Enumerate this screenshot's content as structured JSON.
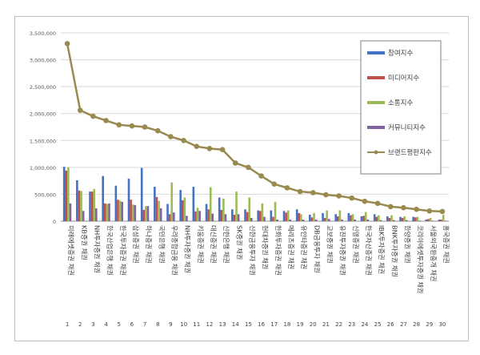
{
  "chart_data": {
    "type": "bar",
    "categories": [
      "미래에셋증권 채권",
      "KB증권 채권",
      "NH투자증권 채권",
      "한국산업은행 채권",
      "한국투자증권 채권",
      "삼성증권 채권",
      "하나증권 채권",
      "국민은행 채권",
      "우리종합금융 채권",
      "NH투자증권 채권",
      "키움증권 채권",
      "대신증권 채권",
      "신한은행 채권",
      "SK증권 채권",
      "신한금융투자 채권",
      "현대차증권 채권",
      "한화투자증권 채권",
      "메리츠증권 채권",
      "유안타증권 채권",
      "DB금융투자 채권",
      "교보증권 채권",
      "유진투자증권 채권",
      "신영증권 채권",
      "한국자산증권 채권",
      "IBK투자증권 채권",
      "BNK투자증권 채권",
      "한양증권 채권",
      "코리아에셋투자증권 채권",
      "서울외국환중개 채권",
      "흥국증권 채권"
    ],
    "rank_labels": [
      "1",
      "2",
      "3",
      "4",
      "5",
      "6",
      "7",
      "8",
      "9",
      "10",
      "11",
      "12",
      "13",
      "14",
      "15",
      "16",
      "17",
      "18",
      "19",
      "20",
      "21",
      "22",
      "23",
      "24",
      "25",
      "26",
      "27",
      "28",
      "29",
      "30"
    ],
    "series": [
      {
        "name": "참여지수",
        "color": "#4472c4",
        "values": [
          1010000,
          760000,
          550000,
          840000,
          660000,
          790000,
          990000,
          640000,
          320000,
          580000,
          640000,
          320000,
          440000,
          220000,
          220000,
          200000,
          200000,
          190000,
          220000,
          120000,
          150000,
          130000,
          150000,
          90000,
          130000,
          90000,
          80000,
          80000,
          30000,
          30000
        ]
      },
      {
        "name": "미디어지수",
        "color": "#c0504d",
        "values": [
          940000,
          570000,
          550000,
          330000,
          400000,
          400000,
          210000,
          450000,
          130000,
          390000,
          180000,
          220000,
          210000,
          120000,
          170000,
          190000,
          80000,
          160000,
          150000,
          70000,
          60000,
          90000,
          110000,
          100000,
          80000,
          60000,
          60000,
          70000,
          40000,
          30000
        ]
      },
      {
        "name": "소통지수",
        "color": "#9bbb59",
        "values": [
          1000000,
          560000,
          600000,
          320000,
          380000,
          310000,
          280000,
          380000,
          720000,
          440000,
          250000,
          630000,
          420000,
          550000,
          440000,
          330000,
          360000,
          200000,
          130000,
          150000,
          200000,
          200000,
          130000,
          170000,
          110000,
          110000,
          90000,
          80000,
          60000,
          120000
        ]
      },
      {
        "name": "커뮤니티지수",
        "color": "#8064a2",
        "values": [
          330000,
          190000,
          240000,
          330000,
          360000,
          300000,
          280000,
          240000,
          160000,
          100000,
          190000,
          140000,
          130000,
          130000,
          60000,
          80000,
          30000,
          30000,
          30000,
          30000,
          40000,
          30000,
          30000,
          30000,
          20000,
          20000,
          20000,
          10000,
          10000,
          10000
        ]
      },
      {
        "name": "브랜드평판지수",
        "color": "#998a4f",
        "type": "line",
        "values": [
          3300000,
          2060000,
          1950000,
          1870000,
          1790000,
          1770000,
          1750000,
          1680000,
          1570000,
          1500000,
          1390000,
          1350000,
          1330000,
          1080000,
          1000000,
          840000,
          690000,
          620000,
          550000,
          530000,
          490000,
          470000,
          430000,
          370000,
          330000,
          270000,
          250000,
          220000,
          190000,
          180000
        ]
      }
    ],
    "y_ticks": [
      "0",
      "500,000",
      "1,000,000",
      "1,500,000",
      "2,000,000",
      "2,500,000",
      "3,000,000",
      "3,500,000"
    ],
    "ylim": [
      0,
      3500000
    ],
    "grid": true,
    "legend_position": "right"
  }
}
